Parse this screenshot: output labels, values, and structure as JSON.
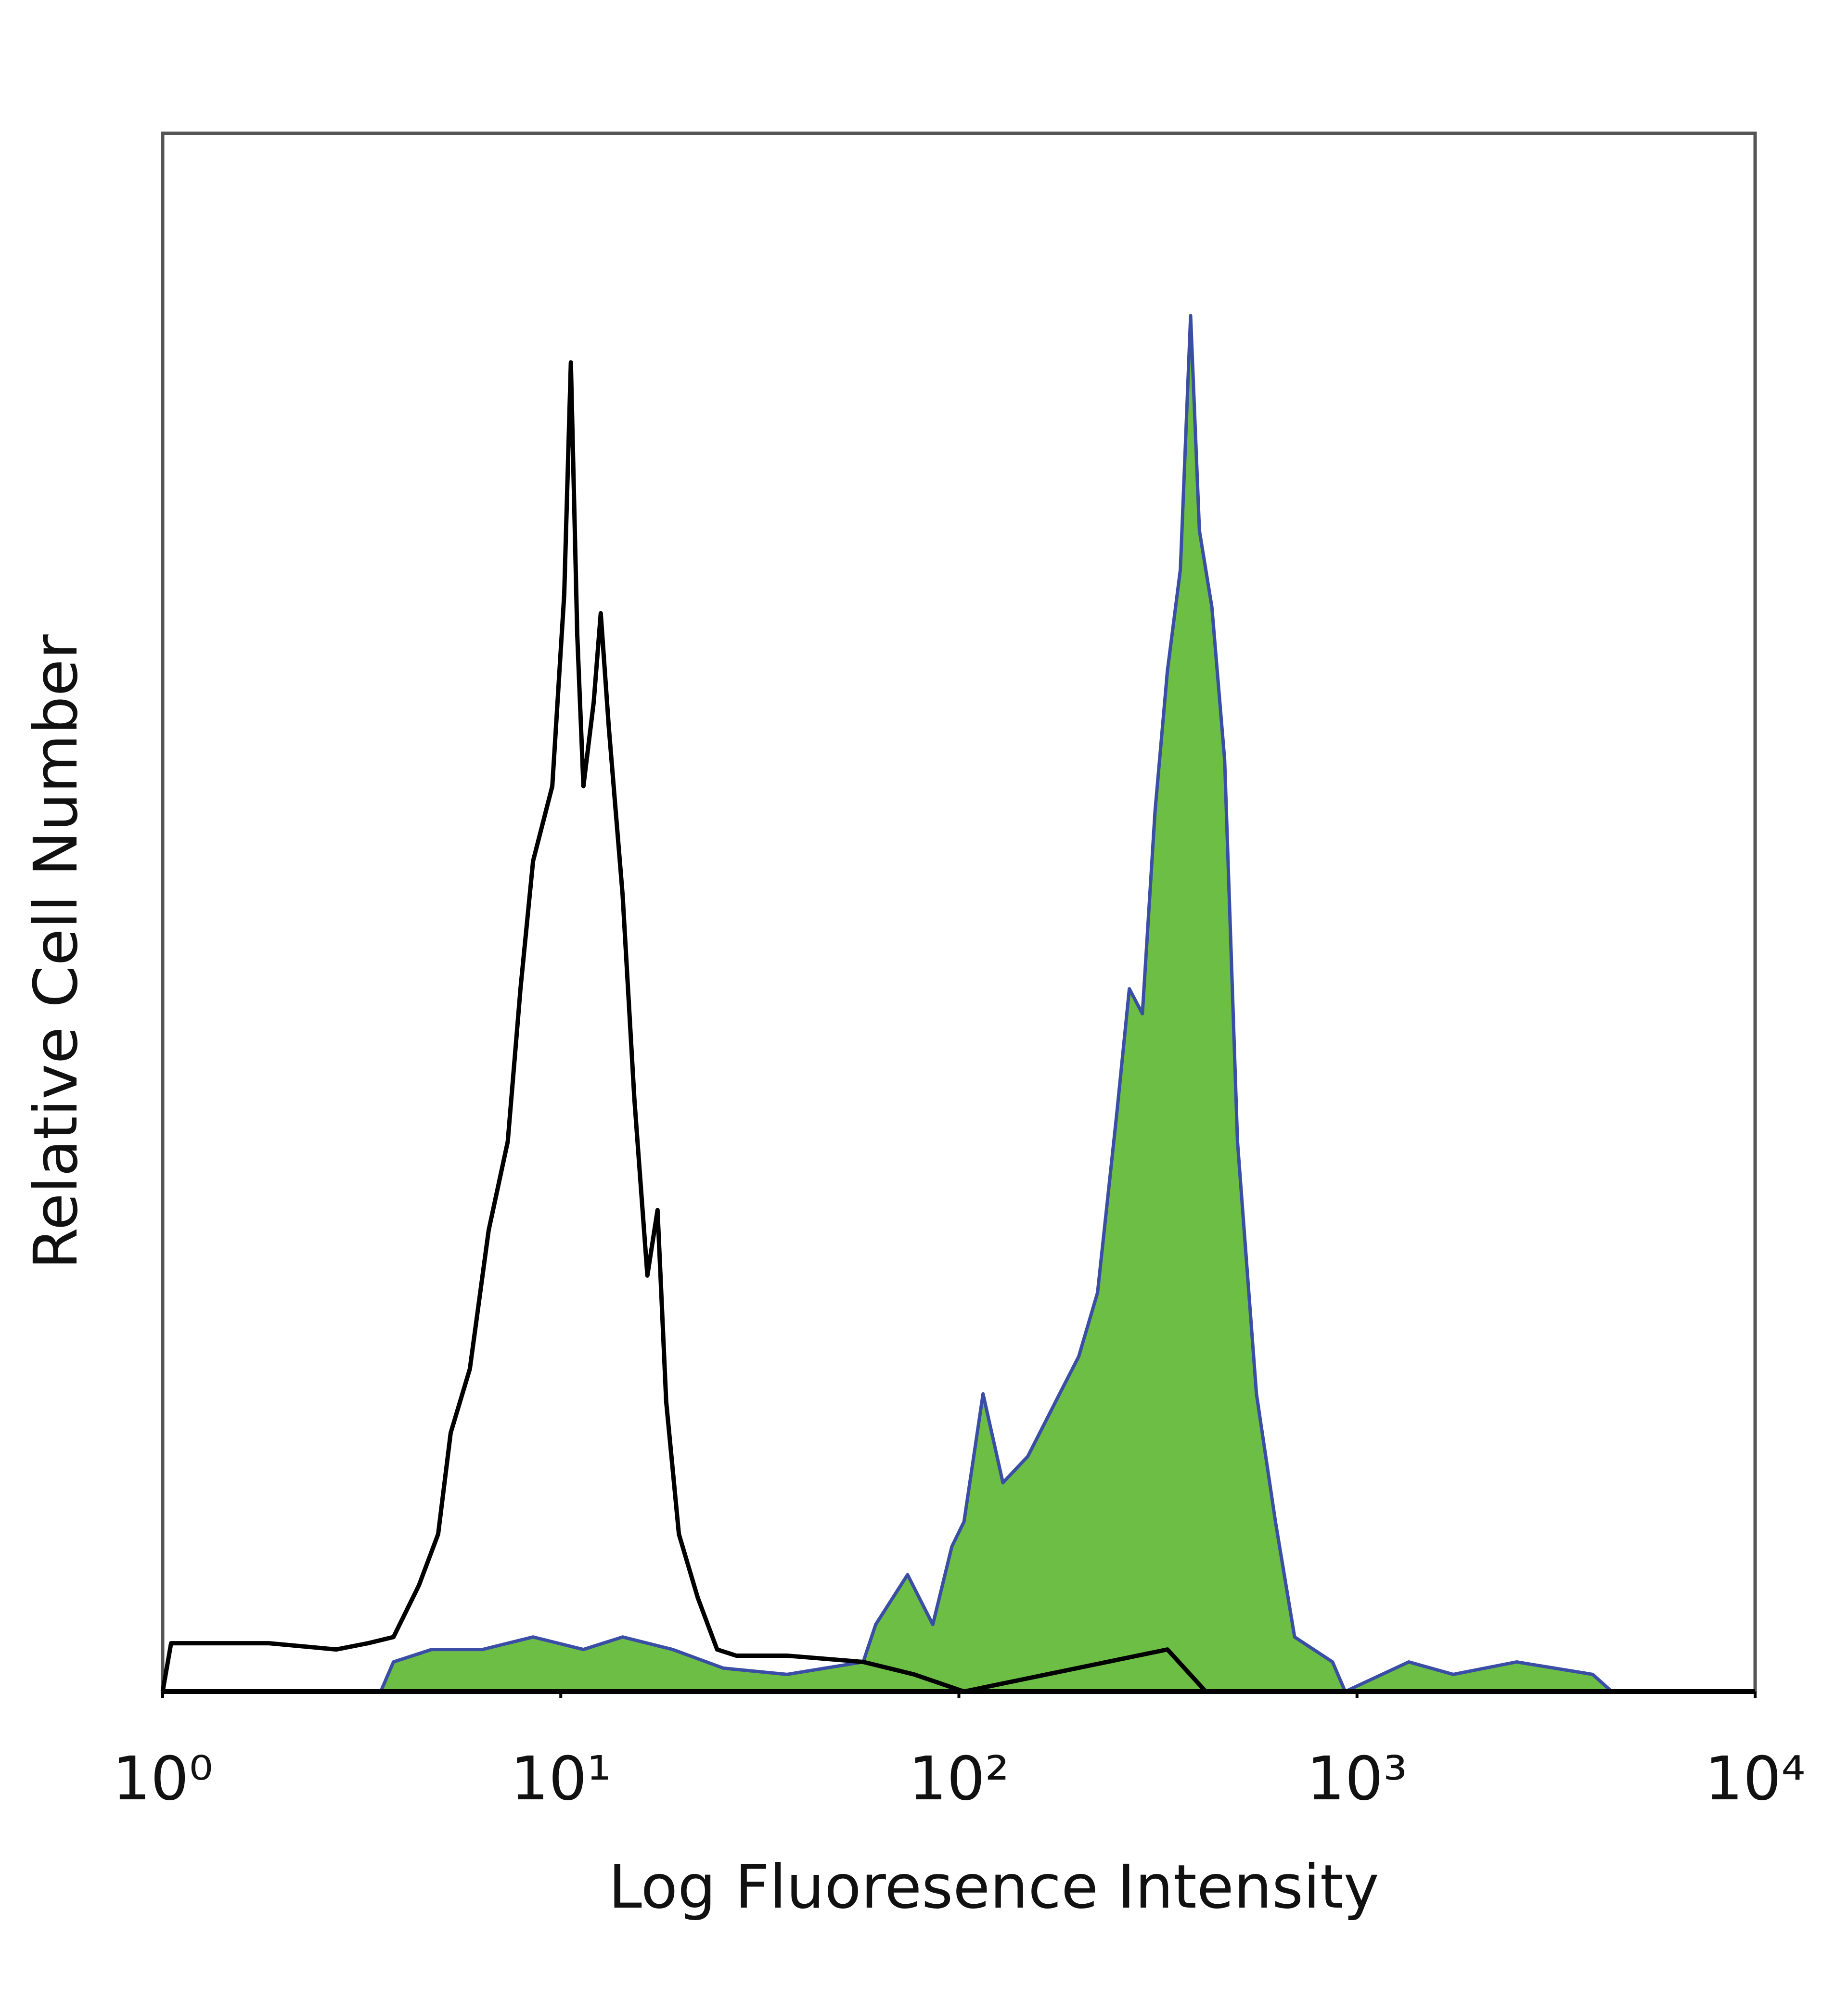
{
  "chart_data": {
    "type": "histogram-line",
    "xlabel": "Log Fluoresence Intensity",
    "ylabel": "Relative Cell Number",
    "xscale": "log",
    "xlim": [
      1,
      10000
    ],
    "xticks": [
      {
        "value": 1,
        "label": "10⁰"
      },
      {
        "value": 10,
        "label": "10¹"
      },
      {
        "value": 100,
        "label": "10²"
      },
      {
        "value": 1000,
        "label": "10³"
      },
      {
        "value": 10000,
        "label": "10⁴"
      }
    ],
    "ylim": [
      0,
      100
    ],
    "grid": false,
    "series": [
      {
        "color": "#000000",
        "x": [
          1,
          1.05,
          1.85,
          2.73,
          3.28,
          3.8,
          4.4,
          4.92,
          5.29,
          5.91,
          6.59,
          7.36,
          7.92,
          8.52,
          9.52,
          10.2,
          10.6,
          11,
          11.4,
          12.1,
          12.6,
          13.2,
          14.3,
          15.3,
          16.5,
          17.5,
          18.4,
          19.8,
          22.1,
          24.7,
          27.6,
          37,
          57.5,
          77.1,
          103,
          334,
          417,
          10000
        ],
        "values": [
          0,
          3.1,
          3.1,
          2.7,
          3.1,
          3.5,
          6.8,
          10.1,
          16.6,
          20.7,
          29.6,
          35.3,
          45.1,
          53.3,
          58.1,
          70.4,
          85.3,
          67.8,
          58.1,
          63.5,
          69.2,
          61.9,
          51.1,
          38.1,
          26.7,
          30.9,
          18.6,
          10.1,
          6,
          2.7,
          2.3,
          2.3,
          1.9,
          1.1,
          0,
          2.7,
          0,
          0
        ]
      },
      {
        "color": "#3a4ea6",
        "fill": "#6dbe45",
        "x": [
          3.53,
          3.8,
          4.74,
          6.36,
          8.52,
          11.4,
          14.3,
          19.1,
          25.6,
          37,
          57.5,
          61.8,
          74.3,
          86,
          96,
          103,
          115,
          129,
          149,
          179,
          200,
          223,
          249,
          268,
          289,
          311,
          334,
          360,
          382,
          402,
          432,
          465,
          501,
          559,
          624,
          697,
          868,
          934,
          1349,
          1744,
          2517,
          3909,
          4364
        ],
        "values": [
          0,
          1.9,
          2.7,
          2.7,
          3.5,
          2.7,
          3.5,
          2.7,
          1.5,
          1.1,
          1.9,
          4.3,
          7.5,
          4.3,
          9.3,
          10.9,
          19.1,
          13.4,
          15.1,
          19.1,
          21.5,
          25.6,
          37,
          45.1,
          43.5,
          56.5,
          65.5,
          72,
          88.3,
          74.5,
          69.6,
          59.8,
          35.3,
          19.1,
          10.9,
          3.5,
          1.9,
          0,
          1.9,
          1.1,
          1.9,
          1.1,
          0
        ]
      }
    ]
  }
}
